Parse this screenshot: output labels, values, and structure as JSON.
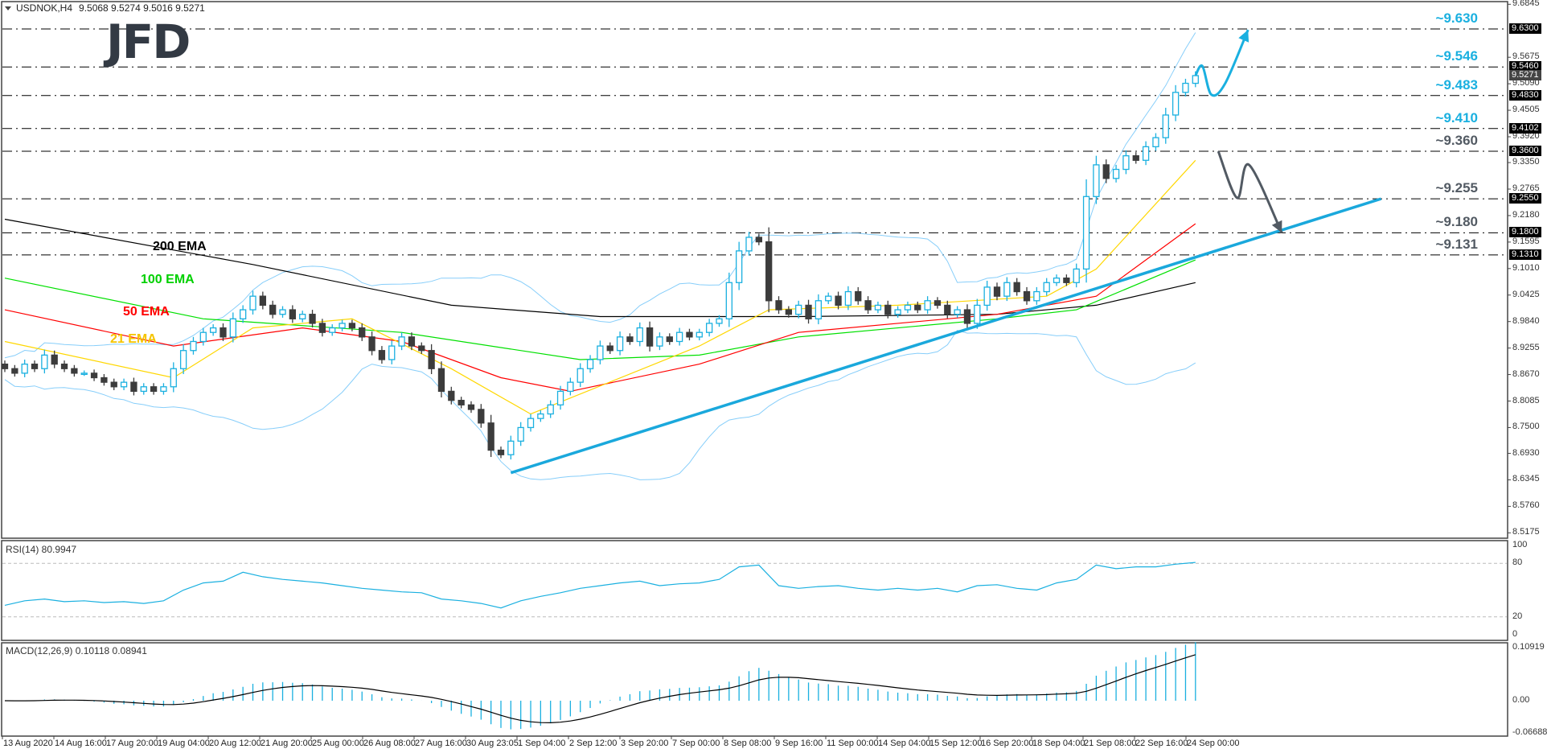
{
  "header": {
    "symbol": "USDNOK,H4",
    "ohlc": "9.5068 9.5274 9.5016 9.5271"
  },
  "logo": "JFD",
  "colors": {
    "bull": "#1ab0e0",
    "bear": "#3c3c3c",
    "bands": "#87cefa",
    "trend": "#1aa8dc",
    "blue_ann": "#1ab0e0",
    "gray_ann": "#525a63"
  },
  "chart_data": {
    "type": "candlestick",
    "title": "USDNOK,H4",
    "ylim": [
      8.5175,
      9.6845
    ],
    "y_ticks": [
      "9.6845",
      "9.5675",
      "9.5090",
      "9.4505",
      "9.3920",
      "9.3350",
      "9.2765",
      "9.2180",
      "9.1595",
      "9.1010",
      "9.0425",
      "8.9840",
      "8.9255",
      "8.8670",
      "8.8085",
      "8.7500",
      "8.6930",
      "8.6345",
      "8.5760",
      "8.5175"
    ],
    "level_tags": [
      "9.6300",
      "9.5460",
      "9.4830",
      "9.4102",
      "9.3600",
      "9.2550",
      "9.1800",
      "9.1310"
    ],
    "current_price": "9.5271",
    "annotations": [
      {
        "text": "~9.630",
        "price": 9.63,
        "tone": "blue"
      },
      {
        "text": "~9.546",
        "price": 9.546,
        "tone": "blue"
      },
      {
        "text": "~9.483",
        "price": 9.483,
        "tone": "blue"
      },
      {
        "text": "~9.410",
        "price": 9.4102,
        "tone": "blue"
      },
      {
        "text": "~9.360",
        "price": 9.36,
        "tone": "gray"
      },
      {
        "text": "~9.255",
        "price": 9.255,
        "tone": "gray"
      },
      {
        "text": "~9.180",
        "price": 9.18,
        "tone": "gray"
      },
      {
        "text": "~9.131",
        "price": 9.131,
        "tone": "gray"
      }
    ],
    "x_labels": [
      "13 Aug 2020",
      "14 Aug 16:00",
      "17 Aug 20:00",
      "19 Aug 04:00",
      "20 Aug 12:00",
      "21 Aug 20:00",
      "25 Aug 00:00",
      "26 Aug 08:00",
      "27 Aug 16:00",
      "30 Aug 23:05",
      "1 Sep 04:00",
      "2 Sep 12:00",
      "3 Sep 20:00",
      "7 Sep 00:00",
      "8 Sep 08:00",
      "9 Sep 16:00",
      "11 Sep 00:00",
      "14 Sep 04:00",
      "15 Sep 12:00",
      "16 Sep 20:00",
      "18 Sep 04:00",
      "21 Sep 08:00",
      "22 Sep 16:00",
      "24 Sep 00:00"
    ],
    "closes": [
      8.88,
      8.87,
      8.89,
      8.88,
      8.91,
      8.89,
      8.88,
      8.87,
      8.87,
      8.86,
      8.85,
      8.84,
      8.85,
      8.83,
      8.84,
      8.83,
      8.84,
      8.88,
      8.92,
      8.94,
      8.96,
      8.97,
      8.95,
      8.99,
      9.01,
      9.04,
      9.02,
      9.0,
      9.01,
      8.99,
      9.0,
      8.98,
      8.96,
      8.97,
      8.98,
      8.97,
      8.95,
      8.92,
      8.9,
      8.93,
      8.95,
      8.93,
      8.92,
      8.88,
      8.83,
      8.81,
      8.8,
      8.79,
      8.76,
      8.7,
      8.69,
      8.72,
      8.75,
      8.77,
      8.78,
      8.8,
      8.83,
      8.85,
      8.88,
      8.9,
      8.93,
      8.92,
      8.95,
      8.94,
      8.97,
      8.93,
      8.95,
      8.94,
      8.96,
      8.95,
      8.96,
      8.98,
      8.99,
      9.07,
      9.14,
      9.17,
      9.16,
      9.03,
      9.01,
      9.0,
      9.02,
      8.99,
      9.03,
      9.04,
      9.02,
      9.05,
      9.03,
      9.01,
      9.02,
      9.0,
      9.01,
      9.02,
      9.01,
      9.03,
      9.02,
      9.0,
      9.01,
      8.98,
      9.02,
      9.06,
      9.04,
      9.07,
      9.05,
      9.03,
      9.05,
      9.07,
      9.08,
      9.07,
      9.1,
      9.26,
      9.33,
      9.3,
      9.32,
      9.35,
      9.34,
      9.37,
      9.39,
      9.44,
      9.49,
      9.51,
      9.527
    ],
    "ema_lines": [
      {
        "name": "200 EMA",
        "color": "#000000",
        "points": [
          [
            0,
            9.21
          ],
          [
            25,
            9.11
          ],
          [
            45,
            9.02
          ],
          [
            60,
            8.995
          ],
          [
            80,
            8.995
          ],
          [
            100,
            9.0
          ],
          [
            110,
            9.02
          ],
          [
            120,
            9.07
          ]
        ]
      },
      {
        "name": "100 EMA",
        "color": "#00e000",
        "points": [
          [
            0,
            9.08
          ],
          [
            20,
            8.99
          ],
          [
            40,
            8.96
          ],
          [
            58,
            8.9
          ],
          [
            70,
            8.91
          ],
          [
            80,
            8.95
          ],
          [
            100,
            8.99
          ],
          [
            108,
            9.01
          ],
          [
            120,
            9.12
          ]
        ]
      },
      {
        "name": "50 EMA",
        "color": "#ff0000",
        "points": [
          [
            0,
            9.01
          ],
          [
            17,
            8.93
          ],
          [
            30,
            8.97
          ],
          [
            40,
            8.94
          ],
          [
            50,
            8.86
          ],
          [
            57,
            8.83
          ],
          [
            70,
            8.89
          ],
          [
            80,
            8.96
          ],
          [
            100,
            9.0
          ],
          [
            110,
            9.04
          ],
          [
            120,
            9.2
          ]
        ]
      },
      {
        "name": "21 EMA",
        "color": "#ffd700",
        "points": [
          [
            0,
            8.94
          ],
          [
            17,
            8.86
          ],
          [
            25,
            8.97
          ],
          [
            35,
            8.99
          ],
          [
            45,
            8.88
          ],
          [
            53,
            8.78
          ],
          [
            70,
            8.93
          ],
          [
            77,
            9.01
          ],
          [
            90,
            9.02
          ],
          [
            105,
            9.04
          ],
          [
            110,
            9.1
          ],
          [
            120,
            9.34
          ]
        ]
      }
    ],
    "trendline": [
      [
        51,
        8.65
      ],
      [
        138.7,
        9.255
      ]
    ],
    "forecast_paths": [
      {
        "tone": "blue",
        "points": [
          [
            120,
            9.527
          ],
          [
            120.7,
            9.548
          ],
          [
            121.6,
            9.485
          ],
          [
            123,
            9.51
          ],
          [
            125.3,
            9.628
          ]
        ]
      },
      {
        "tone": "gray",
        "points": [
          [
            122.3,
            9.36
          ],
          [
            124.2,
            9.257
          ],
          [
            125.4,
            9.33
          ],
          [
            128.7,
            9.18
          ]
        ]
      }
    ],
    "rsi": {
      "label": "RSI(14) 80.9947",
      "ticks": [
        "100",
        "80",
        "20",
        "0"
      ],
      "levels": [
        80,
        20
      ],
      "step": 2,
      "values": [
        33,
        38,
        40,
        37,
        38,
        36,
        37,
        35,
        38,
        50,
        58,
        60,
        70,
        65,
        62,
        60,
        58,
        55,
        52,
        50,
        48,
        47,
        40,
        38,
        35,
        30,
        38,
        43,
        47,
        52,
        55,
        58,
        60,
        55,
        57,
        58,
        62,
        76,
        78,
        55,
        52,
        54,
        55,
        52,
        50,
        52,
        50,
        52,
        48,
        55,
        56,
        52,
        50,
        58,
        62,
        78,
        74,
        76,
        76,
        79,
        81
      ]
    },
    "macd": {
      "label": "MACD(12,26,9) 0.10118 0.08941",
      "ticks": [
        "0.10919",
        "0.00",
        "-0.06688"
      ]
    }
  }
}
